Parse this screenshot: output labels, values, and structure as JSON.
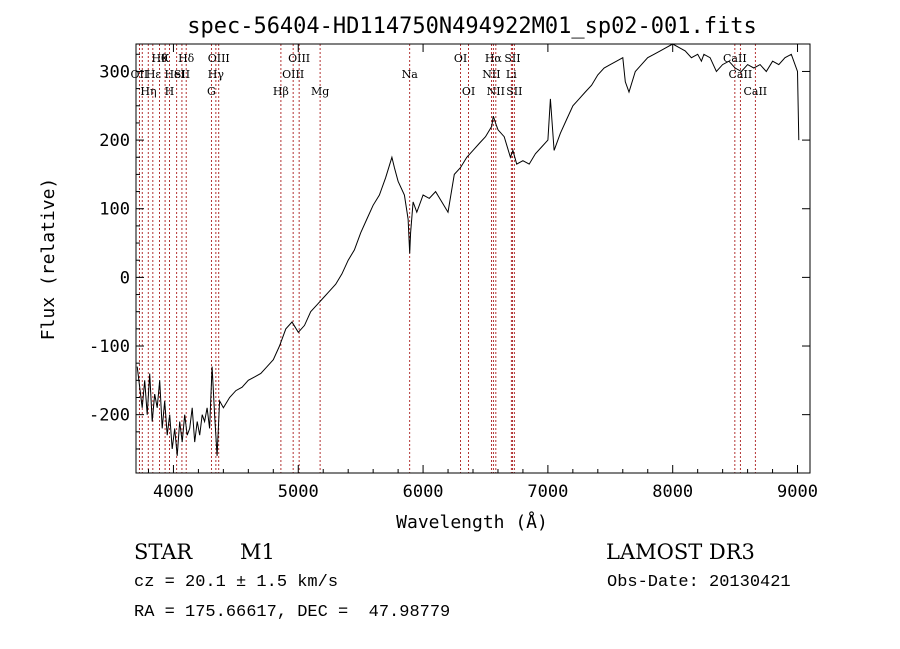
{
  "chart_data": {
    "type": "line",
    "title": "spec-56404-HD114750N494922M01_sp02-001.fits",
    "xlabel": "Wavelength (Å)",
    "ylabel": "Flux (relative)",
    "xlim": [
      3700,
      9100
    ],
    "ylim": [
      -285,
      340
    ],
    "xticks": [
      4000,
      5000,
      6000,
      7000,
      8000,
      9000
    ],
    "yticks": [
      -200,
      -100,
      0,
      100,
      200,
      300
    ],
    "grid": false,
    "line_color": "#000000",
    "marker_color": "#a00000",
    "series": [
      {
        "x": [
          3710,
          3730,
          3750,
          3770,
          3790,
          3810,
          3830,
          3850,
          3870,
          3890,
          3910,
          3930,
          3950,
          3970,
          3990,
          4010,
          4030,
          4050,
          4070,
          4090,
          4110,
          4130,
          4150,
          4170,
          4190,
          4210,
          4230,
          4250,
          4270,
          4290,
          4310,
          4330,
          4350,
          4370,
          4400,
          4450,
          4500,
          4550,
          4600,
          4650,
          4700,
          4750,
          4800,
          4850,
          4900,
          4950,
          5000,
          5050,
          5100,
          5150,
          5200,
          5250,
          5300,
          5350,
          5400,
          5450,
          5500,
          5550,
          5600,
          5650,
          5700,
          5750,
          5770,
          5800,
          5850,
          5880,
          5893,
          5900,
          5920,
          5950,
          6000,
          6050,
          6100,
          6150,
          6200,
          6250,
          6300,
          6350,
          6400,
          6450,
          6500,
          6550,
          6563,
          6580,
          6600,
          6650,
          6700,
          6720,
          6750,
          6800,
          6850,
          6900,
          6950,
          7000,
          7020,
          7050,
          7100,
          7150,
          7200,
          7250,
          7300,
          7350,
          7400,
          7450,
          7500,
          7550,
          7600,
          7620,
          7650,
          7700,
          7750,
          7800,
          7850,
          7900,
          7950,
          8000,
          8050,
          8100,
          8150,
          8200,
          8230,
          8250,
          8300,
          8350,
          8400,
          8450,
          8500,
          8550,
          8600,
          8650,
          8700,
          8750,
          8800,
          8850,
          8900,
          8950,
          9000,
          9010
        ],
        "y": [
          -130,
          -160,
          -190,
          -150,
          -200,
          -140,
          -210,
          -170,
          -190,
          -150,
          -220,
          -180,
          -230,
          -200,
          -250,
          -220,
          -260,
          -210,
          -240,
          -200,
          -230,
          -220,
          -190,
          -240,
          -210,
          -230,
          -200,
          -210,
          -190,
          -220,
          -130,
          -200,
          -260,
          -180,
          -190,
          -175,
          -165,
          -160,
          -150,
          -145,
          -140,
          -130,
          -120,
          -100,
          -75,
          -65,
          -80,
          -70,
          -50,
          -40,
          -30,
          -20,
          -10,
          5,
          25,
          40,
          65,
          85,
          105,
          120,
          145,
          175,
          160,
          140,
          120,
          85,
          35,
          65,
          110,
          95,
          120,
          115,
          125,
          110,
          95,
          150,
          160,
          175,
          185,
          195,
          205,
          220,
          235,
          225,
          215,
          205,
          175,
          185,
          165,
          170,
          165,
          180,
          190,
          200,
          260,
          185,
          210,
          230,
          250,
          260,
          270,
          280,
          295,
          305,
          310,
          315,
          320,
          285,
          270,
          300,
          310,
          320,
          325,
          330,
          335,
          340,
          335,
          330,
          320,
          325,
          315,
          325,
          320,
          300,
          310,
          315,
          305,
          300,
          310,
          305,
          310,
          300,
          315,
          310,
          320,
          325,
          300,
          200
        ]
      }
    ],
    "line_markers": [
      {
        "wl": 3727,
        "label": "OII",
        "row": 2
      },
      {
        "wl": 3750,
        "label": "",
        "row": 0
      },
      {
        "wl": 3798,
        "label": "",
        "row": 0
      },
      {
        "wl": 3835,
        "label": "",
        "row": 0
      },
      {
        "wl": 3889,
        "label": "Hθ",
        "row": 1
      },
      {
        "wl": 3933,
        "label": "K",
        "row": 1
      },
      {
        "wl": 3968,
        "label": "H",
        "row": 3
      },
      {
        "wl": 4026,
        "label": "",
        "row": 0
      },
      {
        "wl": 4068,
        "label": "SII",
        "row": 2
      },
      {
        "wl": 4102,
        "label": "Hδ",
        "row": 1
      },
      {
        "wl": 4304,
        "label": "G",
        "row": 3
      },
      {
        "wl": 4340,
        "label": "Hγ",
        "row": 2
      },
      {
        "wl": 4363,
        "label": "OIII",
        "row": 1
      },
      {
        "wl": 4861,
        "label": "Hβ",
        "row": 3
      },
      {
        "wl": 4959,
        "label": "OIII",
        "row": 2
      },
      {
        "wl": 5007,
        "label": "OIII",
        "row": 1
      },
      {
        "wl": 5175,
        "label": "Mg",
        "row": 3
      },
      {
        "wl": 5893,
        "label": "Na",
        "row": 2
      },
      {
        "wl": 6300,
        "label": "OI",
        "row": 1
      },
      {
        "wl": 6364,
        "label": "OI",
        "row": 3
      },
      {
        "wl": 6548,
        "label": "NII",
        "row": 2
      },
      {
        "wl": 6563,
        "label": "Hα",
        "row": 1
      },
      {
        "wl": 6583,
        "label": "NII",
        "row": 3
      },
      {
        "wl": 6707,
        "label": "Li",
        "row": 2
      },
      {
        "wl": 6716,
        "label": "SII",
        "row": 1
      },
      {
        "wl": 6731,
        "label": "SII",
        "row": 3
      },
      {
        "wl": 8498,
        "label": "CaII",
        "row": 1
      },
      {
        "wl": 8542,
        "label": "CaII",
        "row": 2
      },
      {
        "wl": 8662,
        "label": "CaII",
        "row": 3
      }
    ],
    "overlay_labels": [
      {
        "text": "Hε",
        "wl": 3840,
        "row": 2
      },
      {
        "text": "Hη",
        "wl": 3800,
        "row": 3
      },
      {
        "text": "HeI",
        "wl": 4010,
        "row": 2
      }
    ]
  },
  "info": {
    "object_class": "STAR",
    "subclass": "M1",
    "survey": "LAMOST DR3",
    "redshift": "cz = 20.1 ± 1.5 km/s",
    "obs_date": "Obs-Date: 20130421",
    "coords": "RA = 175.66617, DEC =  47.98779"
  }
}
